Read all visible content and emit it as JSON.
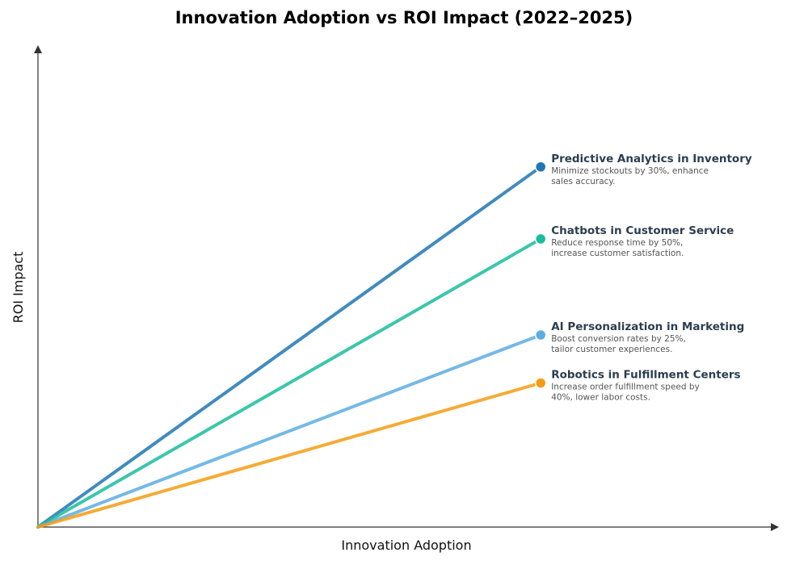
{
  "chart_data": {
    "type": "line",
    "title": "Innovation Adoption vs ROI Impact (2022–2025)",
    "xlabel": "Innovation Adoption",
    "ylabel": "ROI Impact",
    "xlim": [
      0,
      10
    ],
    "ylim": [
      0,
      10
    ],
    "grid": false,
    "legend": "none",
    "series": [
      {
        "name": "Predictive Analytics in Inventory",
        "description": [
          "Minimize stockouts by 30%, enhance",
          "sales accuracy."
        ],
        "color": "#1f77b4",
        "x": [
          0,
          6.8
        ],
        "y": [
          0,
          7.5
        ]
      },
      {
        "name": "Chatbots in Customer Service",
        "description": [
          "Reduce response time by 50%,",
          "increase customer satisfaction."
        ],
        "color": "#1abc9c",
        "x": [
          0,
          6.8
        ],
        "y": [
          0,
          6.0
        ]
      },
      {
        "name": "AI Personalization in Marketing",
        "description": [
          "Boost conversion rates by 25%,",
          "tailor customer experiences."
        ],
        "color": "#5dade2",
        "x": [
          0,
          6.8
        ],
        "y": [
          0,
          4.0
        ]
      },
      {
        "name": "Robotics in Fulfillment Centers",
        "description": [
          "Increase order fulfillment speed by",
          "40%, lower labor costs."
        ],
        "color": "#f39c12",
        "x": [
          0,
          6.8
        ],
        "y": [
          0,
          3.0
        ]
      }
    ]
  }
}
